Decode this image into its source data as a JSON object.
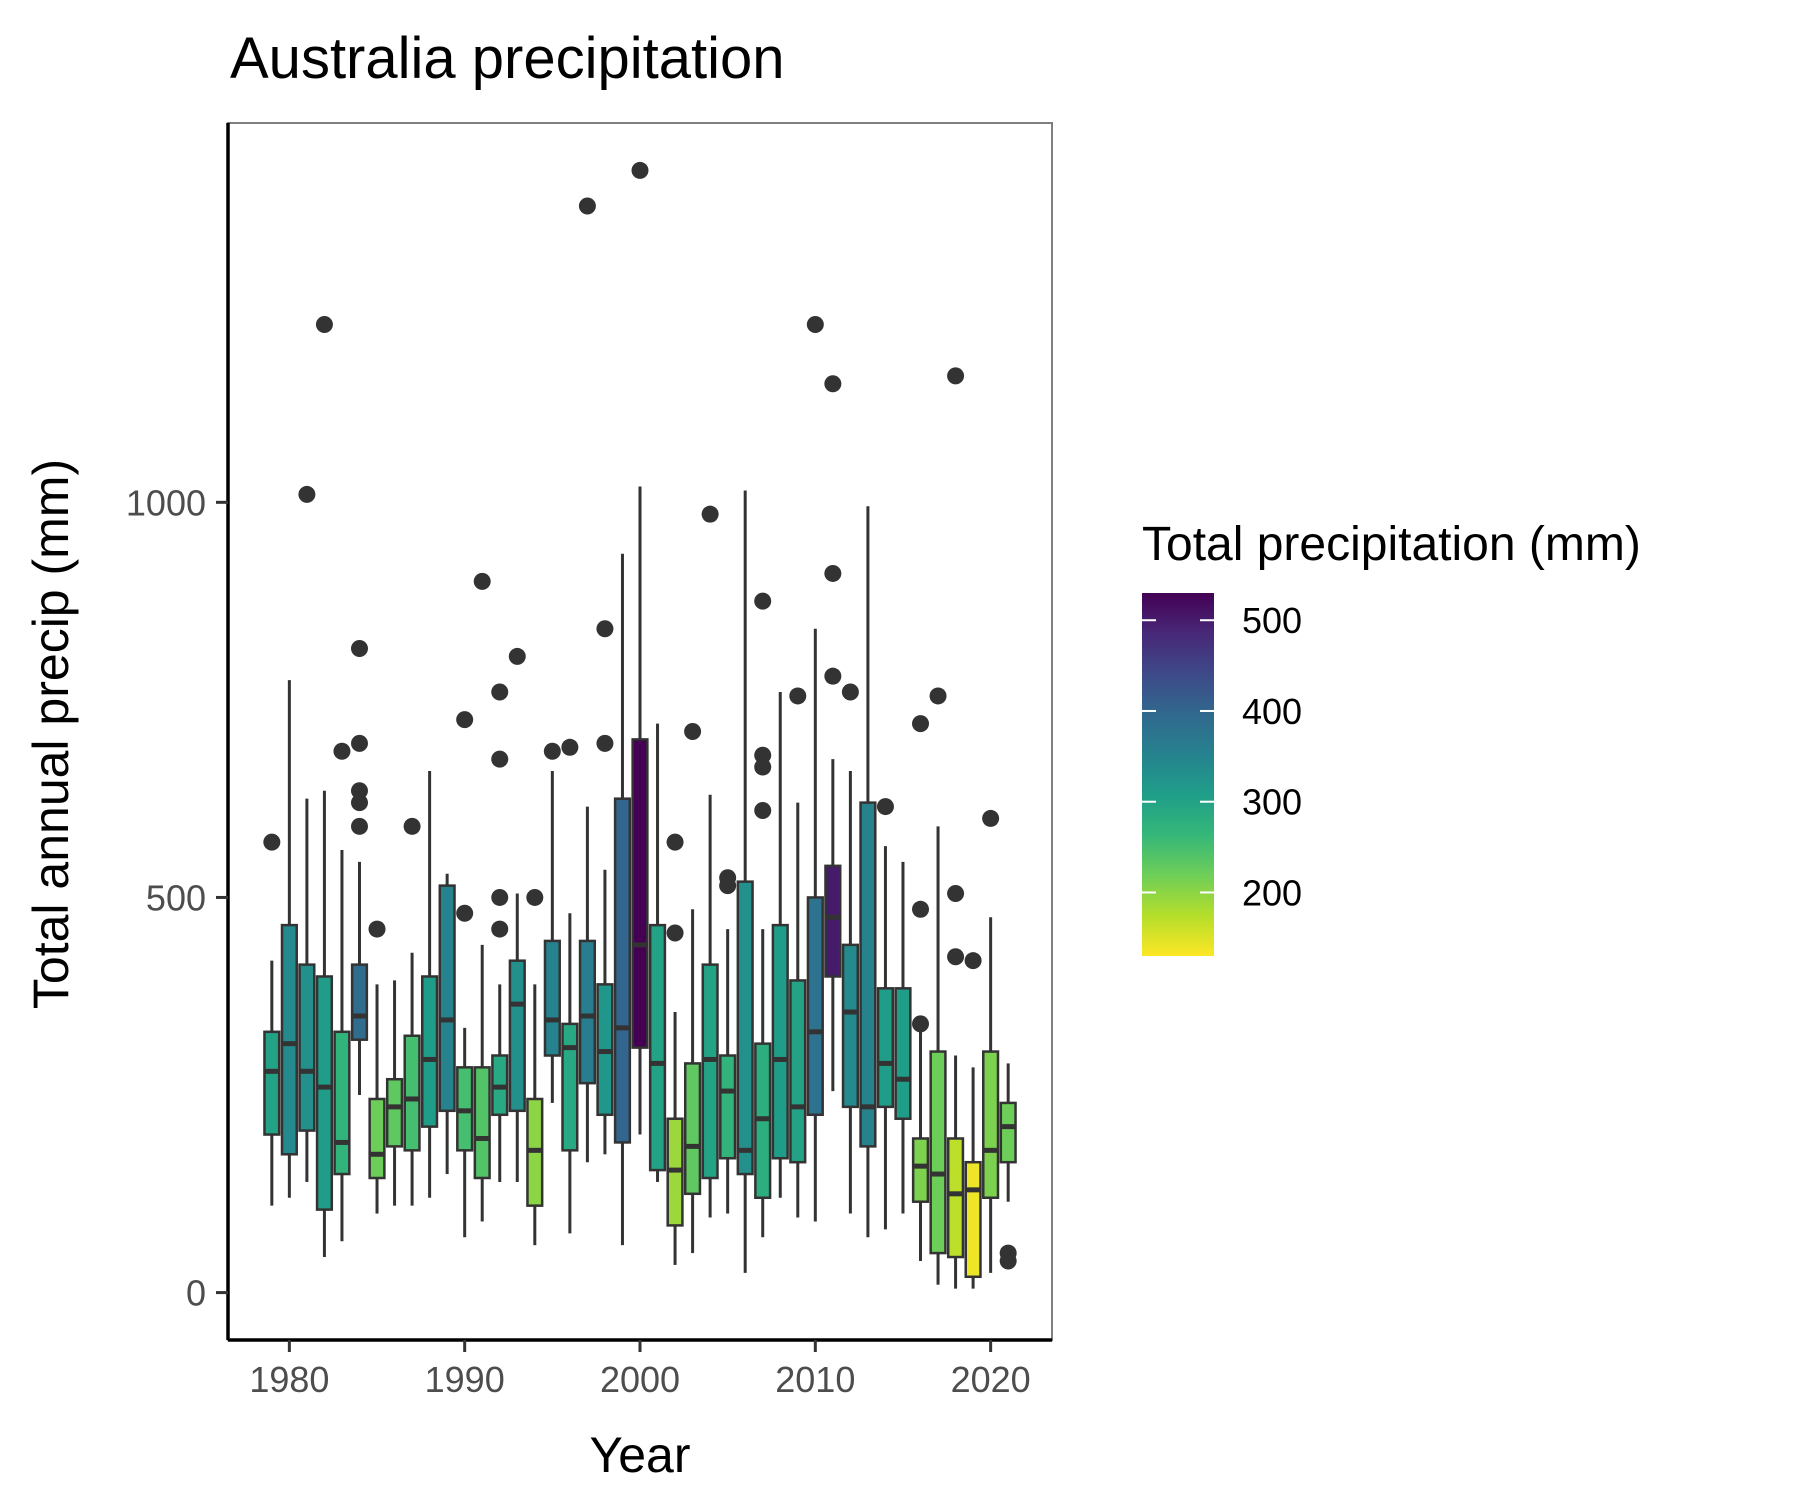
{
  "chart_data": {
    "type": "boxplot",
    "title": "Australia precipitation",
    "xlabel": "Year",
    "ylabel": "Total annual precip (mm)",
    "xlim": [
      1976.5,
      2023.5
    ],
    "ylim": [
      -60,
      1480
    ],
    "x_ticks": [
      1980,
      1990,
      2000,
      2010,
      2020
    ],
    "y_ticks": [
      0,
      500,
      1000
    ],
    "grid": false,
    "legend": {
      "title": "Total precipitation (mm)",
      "placement": "right",
      "type": "colorbar",
      "range": [
        130,
        530
      ],
      "ticks": [
        200,
        300,
        400,
        500
      ],
      "palette": [
        "#fde725",
        "#b5de2b",
        "#6ece58",
        "#35b779",
        "#1f9e89",
        "#26828e",
        "#31688e",
        "#3e4989",
        "#482878",
        "#440154"
      ]
    },
    "box_colors": {
      "whisker": "#333333",
      "outlier": "#333333"
    },
    "boxes": [
      {
        "year": 1979,
        "wlo": 110,
        "q1": 200,
        "med": 280,
        "q3": 330,
        "whi": 420,
        "fill": 300,
        "outliers": [
          570
        ]
      },
      {
        "year": 1980,
        "wlo": 120,
        "q1": 175,
        "med": 315,
        "q3": 465,
        "whi": 775,
        "fill": 340,
        "outliers": []
      },
      {
        "year": 1981,
        "wlo": 140,
        "q1": 205,
        "med": 280,
        "q3": 415,
        "whi": 625,
        "fill": 330,
        "outliers": [
          1010
        ]
      },
      {
        "year": 1982,
        "wlo": 45,
        "q1": 105,
        "med": 260,
        "q3": 400,
        "whi": 635,
        "fill": 310,
        "outliers": [
          1225
        ]
      },
      {
        "year": 1983,
        "wlo": 65,
        "q1": 150,
        "med": 190,
        "q3": 330,
        "whi": 560,
        "fill": 270,
        "outliers": [
          685
        ]
      },
      {
        "year": 1984,
        "wlo": 250,
        "q1": 320,
        "med": 350,
        "q3": 415,
        "whi": 545,
        "fill": 390,
        "outliers": [
          590,
          620,
          635,
          695,
          815
        ]
      },
      {
        "year": 1985,
        "wlo": 100,
        "q1": 145,
        "med": 175,
        "q3": 245,
        "whi": 390,
        "fill": 220,
        "outliers": [
          460
        ]
      },
      {
        "year": 1986,
        "wlo": 110,
        "q1": 185,
        "med": 235,
        "q3": 270,
        "whi": 395,
        "fill": 230,
        "outliers": []
      },
      {
        "year": 1987,
        "wlo": 110,
        "q1": 180,
        "med": 245,
        "q3": 325,
        "whi": 430,
        "fill": 250,
        "outliers": [
          590
        ]
      },
      {
        "year": 1988,
        "wlo": 120,
        "q1": 210,
        "med": 295,
        "q3": 400,
        "whi": 660,
        "fill": 310,
        "outliers": []
      },
      {
        "year": 1989,
        "wlo": 150,
        "q1": 230,
        "med": 345,
        "q3": 515,
        "whi": 530,
        "fill": 350,
        "outliers": []
      },
      {
        "year": 1990,
        "wlo": 70,
        "q1": 180,
        "med": 230,
        "q3": 285,
        "whi": 335,
        "fill": 250,
        "outliers": [
          480,
          725
        ]
      },
      {
        "year": 1991,
        "wlo": 90,
        "q1": 145,
        "med": 195,
        "q3": 285,
        "whi": 440,
        "fill": 240,
        "outliers": [
          900
        ]
      },
      {
        "year": 1992,
        "wlo": 140,
        "q1": 225,
        "med": 260,
        "q3": 300,
        "whi": 390,
        "fill": 290,
        "outliers": [
          460,
          500,
          675,
          760
        ]
      },
      {
        "year": 1993,
        "wlo": 140,
        "q1": 230,
        "med": 365,
        "q3": 420,
        "whi": 505,
        "fill": 330,
        "outliers": [
          805
        ]
      },
      {
        "year": 1994,
        "wlo": 60,
        "q1": 110,
        "med": 180,
        "q3": 245,
        "whi": 390,
        "fill": 200,
        "outliers": [
          500
        ]
      },
      {
        "year": 1995,
        "wlo": 240,
        "q1": 300,
        "med": 345,
        "q3": 445,
        "whi": 660,
        "fill": 350,
        "outliers": [
          685
        ]
      },
      {
        "year": 1996,
        "wlo": 75,
        "q1": 180,
        "med": 310,
        "q3": 340,
        "whi": 480,
        "fill": 290,
        "outliers": [
          690
        ]
      },
      {
        "year": 1997,
        "wlo": 165,
        "q1": 265,
        "med": 350,
        "q3": 445,
        "whi": 615,
        "fill": 360,
        "outliers": [
          1375
        ]
      },
      {
        "year": 1998,
        "wlo": 175,
        "q1": 225,
        "med": 305,
        "q3": 390,
        "whi": 535,
        "fill": 320,
        "outliers": [
          695,
          840
        ]
      },
      {
        "year": 1999,
        "wlo": 60,
        "q1": 190,
        "med": 335,
        "q3": 625,
        "whi": 935,
        "fill": 400,
        "outliers": []
      },
      {
        "year": 2000,
        "wlo": 200,
        "q1": 310,
        "med": 440,
        "q3": 700,
        "whi": 1020,
        "fill": 530,
        "outliers": [
          1420
        ]
      },
      {
        "year": 2001,
        "wlo": 140,
        "q1": 155,
        "med": 290,
        "q3": 465,
        "whi": 720,
        "fill": 300,
        "outliers": []
      },
      {
        "year": 2002,
        "wlo": 35,
        "q1": 85,
        "med": 155,
        "q3": 220,
        "whi": 355,
        "fill": 190,
        "outliers": [
          455,
          570
        ]
      },
      {
        "year": 2003,
        "wlo": 50,
        "q1": 125,
        "med": 185,
        "q3": 290,
        "whi": 485,
        "fill": 230,
        "outliers": [
          710
        ]
      },
      {
        "year": 2004,
        "wlo": 95,
        "q1": 145,
        "med": 295,
        "q3": 415,
        "whi": 630,
        "fill": 300,
        "outliers": [
          985
        ]
      },
      {
        "year": 2005,
        "wlo": 100,
        "q1": 170,
        "med": 255,
        "q3": 300,
        "whi": 460,
        "fill": 270,
        "outliers": [
          515,
          525
        ]
      },
      {
        "year": 2006,
        "wlo": 25,
        "q1": 150,
        "med": 180,
        "q3": 520,
        "whi": 1015,
        "fill": 330,
        "outliers": []
      },
      {
        "year": 2007,
        "wlo": 70,
        "q1": 120,
        "med": 220,
        "q3": 315,
        "whi": 460,
        "fill": 280,
        "outliers": [
          610,
          665,
          680,
          875
        ]
      },
      {
        "year": 2008,
        "wlo": 120,
        "q1": 170,
        "med": 295,
        "q3": 465,
        "whi": 760,
        "fill": 310,
        "outliers": []
      },
      {
        "year": 2009,
        "wlo": 95,
        "q1": 165,
        "med": 235,
        "q3": 395,
        "whi": 620,
        "fill": 300,
        "outliers": [
          755
        ]
      },
      {
        "year": 2010,
        "wlo": 90,
        "q1": 225,
        "med": 330,
        "q3": 500,
        "whi": 840,
        "fill": 380,
        "outliers": [
          1225
        ]
      },
      {
        "year": 2011,
        "wlo": 255,
        "q1": 400,
        "med": 475,
        "q3": 540,
        "whi": 675,
        "fill": 500,
        "outliers": [
          780,
          910,
          1150
        ]
      },
      {
        "year": 2012,
        "wlo": 100,
        "q1": 235,
        "med": 355,
        "q3": 440,
        "whi": 660,
        "fill": 340,
        "outliers": [
          760
        ]
      },
      {
        "year": 2013,
        "wlo": 70,
        "q1": 185,
        "med": 235,
        "q3": 620,
        "whi": 995,
        "fill": 350,
        "outliers": []
      },
      {
        "year": 2014,
        "wlo": 80,
        "q1": 235,
        "med": 290,
        "q3": 385,
        "whi": 565,
        "fill": 310,
        "outliers": [
          615
        ]
      },
      {
        "year": 2015,
        "wlo": 100,
        "q1": 220,
        "med": 270,
        "q3": 385,
        "whi": 545,
        "fill": 310,
        "outliers": []
      },
      {
        "year": 2016,
        "wlo": 40,
        "q1": 115,
        "med": 160,
        "q3": 195,
        "whi": 335,
        "fill": 210,
        "outliers": [
          340,
          485,
          720
        ]
      },
      {
        "year": 2017,
        "wlo": 10,
        "q1": 50,
        "med": 150,
        "q3": 305,
        "whi": 590,
        "fill": 220,
        "outliers": [
          755
        ]
      },
      {
        "year": 2018,
        "wlo": 5,
        "q1": 45,
        "med": 125,
        "q3": 195,
        "whi": 300,
        "fill": 170,
        "outliers": [
          425,
          505,
          1160
        ]
      },
      {
        "year": 2019,
        "wlo": 5,
        "q1": 20,
        "med": 130,
        "q3": 165,
        "whi": 285,
        "fill": 140,
        "outliers": [
          420
        ]
      },
      {
        "year": 2020,
        "wlo": 25,
        "q1": 120,
        "med": 180,
        "q3": 305,
        "whi": 475,
        "fill": 210,
        "outliers": [
          600
        ]
      },
      {
        "year": 2021,
        "wlo": 115,
        "q1": 165,
        "med": 210,
        "q3": 240,
        "whi": 290,
        "fill": 220,
        "outliers": [
          40,
          50
        ]
      }
    ]
  }
}
